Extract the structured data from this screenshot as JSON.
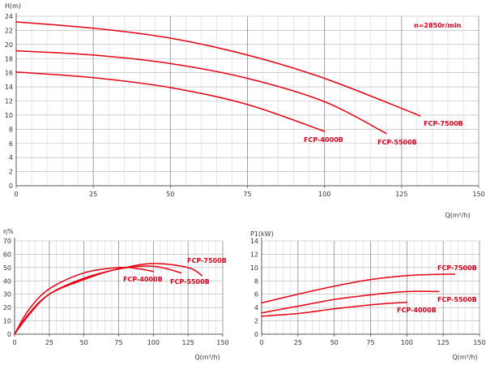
{
  "colors": {
    "curve": "#e60012",
    "label": "#d8001c",
    "grid": "#b0b0b0",
    "axis": "#555555",
    "text": "#333333"
  },
  "chart_data": [
    {
      "type": "line",
      "xlabel": "Q(m³/h)",
      "ylabel": "H(m)",
      "xlim": [
        0,
        150
      ],
      "ylim": [
        0,
        24
      ],
      "xticks": [
        0,
        25,
        50,
        75,
        100,
        125,
        150
      ],
      "yticks": [
        0,
        2,
        4,
        6,
        8,
        10,
        12,
        14,
        16,
        18,
        20,
        22,
        24
      ],
      "grid": true,
      "annotation": "n=2850r/min",
      "series": [
        {
          "name": "FCP-4000B",
          "x": [
            0,
            25,
            50,
            75,
            100
          ],
          "y": [
            16.1,
            15.3,
            13.9,
            11.5,
            7.7
          ]
        },
        {
          "name": "FCP-5500B",
          "x": [
            0,
            25,
            50,
            75,
            100,
            120
          ],
          "y": [
            19.1,
            18.5,
            17.3,
            15.2,
            11.9,
            7.4
          ]
        },
        {
          "name": "FCP-7500B",
          "x": [
            0,
            25,
            50,
            75,
            100,
            131
          ],
          "y": [
            23.2,
            22.3,
            20.9,
            18.5,
            15.2,
            9.9
          ]
        }
      ]
    },
    {
      "type": "line",
      "xlabel": "Q(m³/h)",
      "ylabel": "η%",
      "xlim": [
        0,
        150
      ],
      "ylim": [
        0,
        70
      ],
      "xticks": [
        0,
        25,
        50,
        75,
        100,
        125,
        150
      ],
      "yticks": [
        0,
        10,
        20,
        30,
        40,
        50,
        60,
        70
      ],
      "grid": true,
      "series": [
        {
          "name": "FCP-4000B",
          "x": [
            0,
            10,
            25,
            50,
            75,
            90,
            100
          ],
          "y": [
            0,
            18,
            34,
            46,
            50,
            49,
            47
          ]
        },
        {
          "name": "FCP-5500B",
          "x": [
            0,
            10,
            25,
            50,
            75,
            100,
            120
          ],
          "y": [
            0,
            15,
            30,
            41,
            49,
            51,
            46
          ]
        },
        {
          "name": "FCP-7500B",
          "x": [
            0,
            10,
            25,
            50,
            75,
            100,
            125,
            135
          ],
          "y": [
            0,
            14,
            30,
            42,
            49,
            53,
            50,
            44
          ]
        }
      ]
    },
    {
      "type": "line",
      "xlabel": "Q(m³/h)",
      "ylabel": "P1(kW)",
      "xlim": [
        0,
        150
      ],
      "ylim": [
        0,
        14
      ],
      "xticks": [
        0,
        25,
        50,
        75,
        100,
        125,
        150
      ],
      "yticks": [
        0,
        2,
        4,
        6,
        8,
        10,
        12,
        14
      ],
      "grid": true,
      "series": [
        {
          "name": "FCP-4000B",
          "x": [
            0,
            25,
            50,
            75,
            100
          ],
          "y": [
            2.7,
            3.1,
            3.8,
            4.4,
            4.8
          ]
        },
        {
          "name": "FCP-5500B",
          "x": [
            0,
            25,
            50,
            75,
            100,
            122
          ],
          "y": [
            3.2,
            4.2,
            5.2,
            5.9,
            6.4,
            6.4
          ]
        },
        {
          "name": "FCP-7500B",
          "x": [
            0,
            25,
            50,
            75,
            100,
            125,
            133
          ],
          "y": [
            4.7,
            6.0,
            7.2,
            8.2,
            8.8,
            9.0,
            9.0
          ]
        }
      ]
    }
  ]
}
